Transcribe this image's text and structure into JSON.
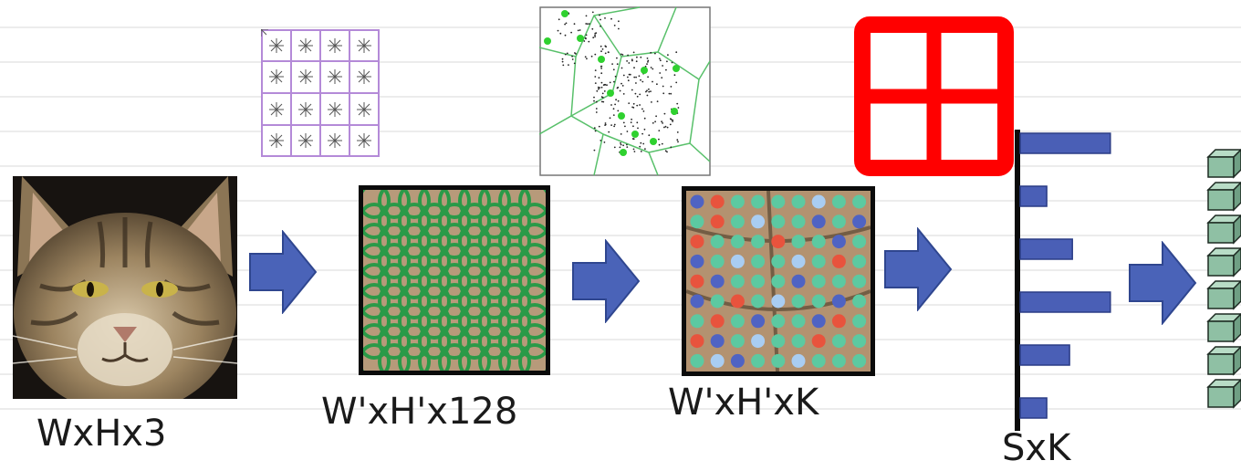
{
  "labels": {
    "image": "WxHx3",
    "descriptors": "W'xH'x128",
    "assignments": "W'xH'xK",
    "histogram": "SxK"
  },
  "colors": {
    "arrow": "#4a63b8",
    "arrow_edge": "#2f468f",
    "descriptor_circle": "#2a9a48",
    "voronoi_line": "#58c06a",
    "voronoi_center": "#2fd12f",
    "pyramid_grid": "#ff0000",
    "sift_grid": "#b48ad8",
    "histogram_bar": "#4a5fb6",
    "word_teal": "#5cc9a1",
    "word_red": "#e8533d",
    "word_blue": "#4f63c3",
    "word_light": "#a9cdf2",
    "cube": "#8fc0a4"
  },
  "histogram": {
    "bars": [
      0.95,
      0.28,
      0.55,
      0.95,
      0.52,
      0.28
    ]
  },
  "icons": [
    "cat-photo",
    "sift-grid-icon",
    "voronoi-icon",
    "pyramid-grid-icon",
    "cube-stack-icon"
  ]
}
